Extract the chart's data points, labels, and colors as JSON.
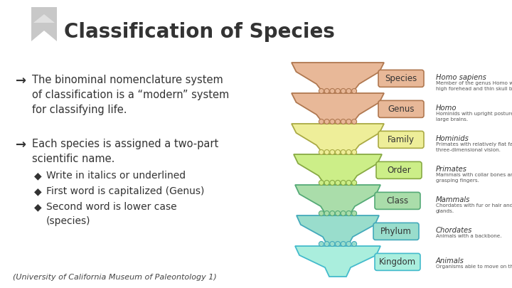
{
  "title": "Classification of Species",
  "background_color": "#ffffff",
  "title_color": "#333333",
  "title_fontsize": 20,
  "funnel_levels": [
    "Species",
    "Genus",
    "Family",
    "Order",
    "Class",
    "Phylum",
    "Kingdom"
  ],
  "funnel_colors": [
    "#e8b898",
    "#e8b898",
    "#eeee99",
    "#ccee88",
    "#aaddaa",
    "#99ddcc",
    "#aaeedd"
  ],
  "funnel_border_colors": [
    "#b07850",
    "#b07850",
    "#aaaa44",
    "#88aa44",
    "#55aa77",
    "#44aabb",
    "#44bbcc"
  ],
  "right_labels": [
    [
      "Homo sapiens",
      "Member of the genus Homo with a\nhigh forehead and thin skull bones."
    ],
    [
      "Homo",
      "Hominids with upright posture and\nlarge brains."
    ],
    [
      "Hominids",
      "Primates with relatively flat faces and\nthree-dimensional vision."
    ],
    [
      "Primates",
      "Mammals with collar bones and\ngrasping fingers."
    ],
    [
      "Mammals",
      "Chordates with fur or hair and milk\nglands."
    ],
    [
      "Chordates",
      "Animals with a backbone."
    ],
    [
      "Animals",
      "Organisms able to move on their own."
    ]
  ],
  "footer": "(University of California Museum of Paleontology 1)"
}
